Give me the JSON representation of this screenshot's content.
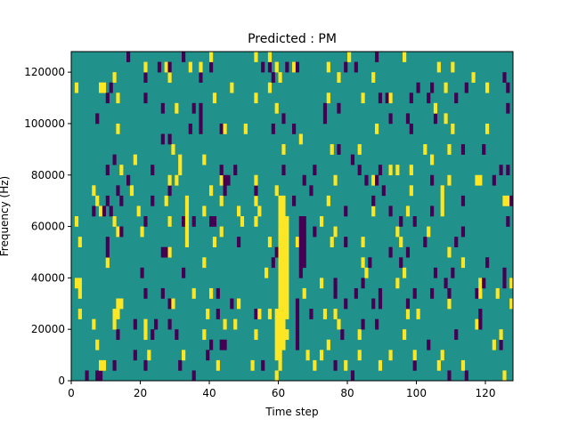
{
  "chart_data": {
    "type": "heatmap",
    "title": "Predicted : PM",
    "xlabel": "Time step",
    "ylabel": "Frequency (Hz)",
    "xlim": [
      0,
      128
    ],
    "ylim": [
      0,
      128000
    ],
    "x_ticks": [
      0,
      20,
      40,
      60,
      80,
      100,
      120
    ],
    "y_ticks": [
      0,
      20000,
      40000,
      60000,
      80000,
      100000,
      120000
    ],
    "x_tick_labels": [
      "0",
      "20",
      "40",
      "60",
      "80",
      "100",
      "120"
    ],
    "y_tick_labels": [
      "0",
      "20000",
      "40000",
      "60000",
      "80000",
      "100000",
      "120000"
    ],
    "grid": false,
    "cell_size": {
      "time_steps": 1,
      "hz": 4000
    },
    "colors": {
      "background": "#21918c",
      "high": "#fde725",
      "low": "#440154"
    },
    "value_levels": {
      "background": 0.5,
      "high": 1,
      "low": 0
    },
    "seed": 7,
    "background_value": 0.5,
    "bands": [
      {
        "t": [
          60,
          62
        ],
        "f": [
          12000,
          72000
        ],
        "value": 1
      },
      {
        "t": [
          62,
          63
        ],
        "f": [
          24000,
          64000
        ],
        "value": 1
      },
      {
        "t": [
          59,
          61
        ],
        "f": [
          8000,
          28000
        ],
        "value": 1
      },
      {
        "t": [
          66,
          68
        ],
        "f": [
          44000,
          64000
        ],
        "value": 0
      },
      {
        "t": [
          65,
          66
        ],
        "f": [
          12000,
          32000
        ],
        "value": 0
      },
      {
        "t": [
          33,
          34
        ],
        "f": [
          52000,
          72000
        ],
        "value": 1
      },
      {
        "t": [
          4,
          5
        ],
        "f": [
          0,
          4000
        ],
        "value": 0
      }
    ],
    "scatter_density": {
      "high": 0.045,
      "low": 0.045
    }
  }
}
